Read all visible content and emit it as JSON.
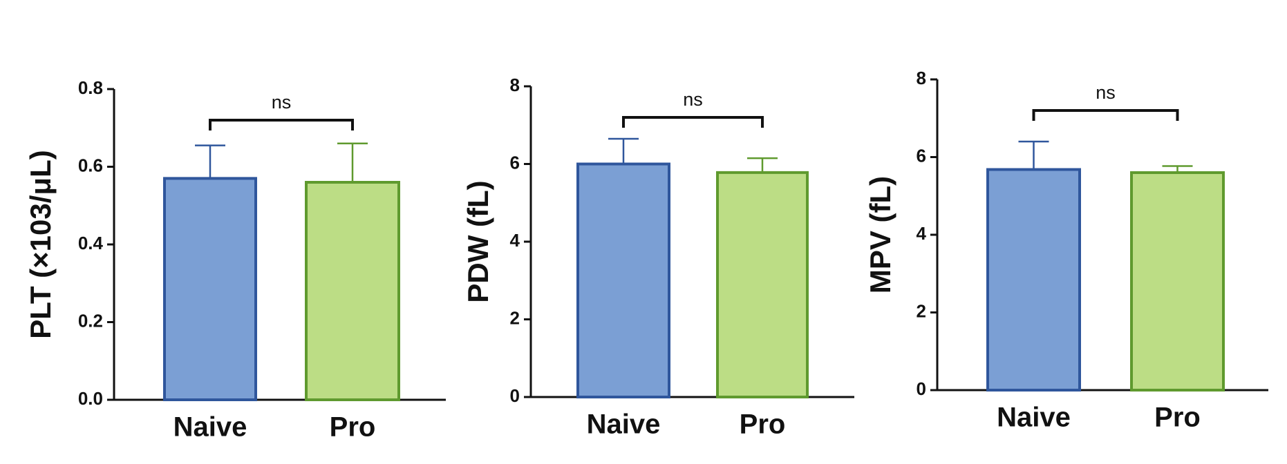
{
  "chart_data": [
    {
      "type": "bar",
      "y_label": "PLT (×103/μL)",
      "categories": [
        "Naive",
        "Pro"
      ],
      "values": [
        0.57,
        0.56
      ],
      "errors": [
        0.085,
        0.1
      ],
      "colors": [
        "#7b9fd4",
        "#bcdd85"
      ],
      "edge_colors": [
        "#2f569c",
        "#5f9a2e"
      ],
      "ylim": [
        0,
        0.8
      ],
      "yticks": [
        {
          "value": 0,
          "label": "0.0"
        },
        0.2,
        0.4,
        0.6,
        0.8
      ],
      "annotation": "ns"
    },
    {
      "type": "bar",
      "y_label": "PDW (fL)",
      "categories": [
        "Naive",
        "Pro"
      ],
      "values": [
        6.0,
        5.78
      ],
      "errors": [
        0.65,
        0.37
      ],
      "colors": [
        "#7b9fd4",
        "#bcdd85"
      ],
      "edge_colors": [
        "#2f569c",
        "#5f9a2e"
      ],
      "ylim": [
        0,
        8
      ],
      "yticks": [
        0,
        2,
        4,
        6,
        8
      ],
      "annotation": "ns"
    },
    {
      "type": "bar",
      "y_label": "MPV (fL)",
      "categories": [
        "Naive",
        "Pro"
      ],
      "values": [
        5.68,
        5.6
      ],
      "errors": [
        0.72,
        0.17
      ],
      "colors": [
        "#7b9fd4",
        "#bcdd85"
      ],
      "edge_colors": [
        "#2f569c",
        "#5f9a2e"
      ],
      "ylim": [
        0,
        8
      ],
      "yticks": [
        0,
        2,
        4,
        6,
        8
      ],
      "annotation": "ns"
    }
  ]
}
